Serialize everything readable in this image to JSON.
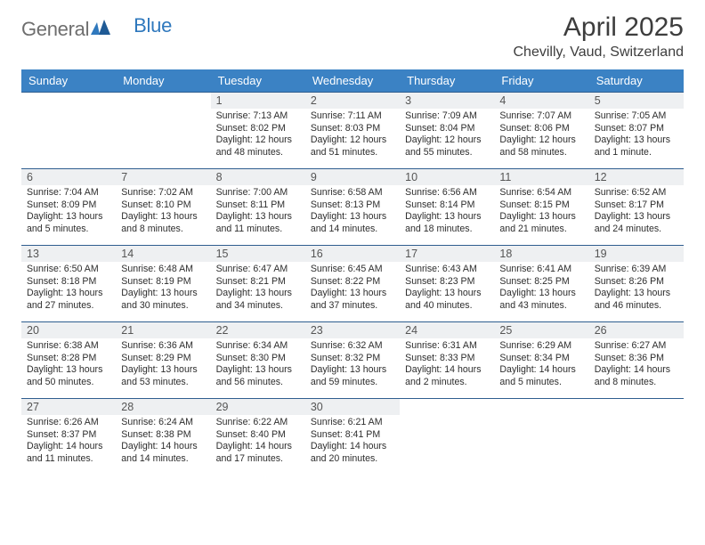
{
  "brand": {
    "part1": "General",
    "part2": "Blue"
  },
  "title": "April 2025",
  "subtitle": "Chevilly, Vaud, Switzerland",
  "colors": {
    "header_bg": "#3b82c4",
    "header_text": "#ffffff",
    "daynum_bg": "#eef0f2",
    "cell_border": "#2f5e8f",
    "logo_gray": "#6e6e6e",
    "logo_blue": "#2f78bd",
    "body_text": "#2d2d2d"
  },
  "weekdays": [
    "Sunday",
    "Monday",
    "Tuesday",
    "Wednesday",
    "Thursday",
    "Friday",
    "Saturday"
  ],
  "weeks": [
    [
      null,
      null,
      {
        "n": "1",
        "sr": "Sunrise: 7:13 AM",
        "ss": "Sunset: 8:02 PM",
        "dl": "Daylight: 12 hours and 48 minutes."
      },
      {
        "n": "2",
        "sr": "Sunrise: 7:11 AM",
        "ss": "Sunset: 8:03 PM",
        "dl": "Daylight: 12 hours and 51 minutes."
      },
      {
        "n": "3",
        "sr": "Sunrise: 7:09 AM",
        "ss": "Sunset: 8:04 PM",
        "dl": "Daylight: 12 hours and 55 minutes."
      },
      {
        "n": "4",
        "sr": "Sunrise: 7:07 AM",
        "ss": "Sunset: 8:06 PM",
        "dl": "Daylight: 12 hours and 58 minutes."
      },
      {
        "n": "5",
        "sr": "Sunrise: 7:05 AM",
        "ss": "Sunset: 8:07 PM",
        "dl": "Daylight: 13 hours and 1 minute."
      }
    ],
    [
      {
        "n": "6",
        "sr": "Sunrise: 7:04 AM",
        "ss": "Sunset: 8:09 PM",
        "dl": "Daylight: 13 hours and 5 minutes."
      },
      {
        "n": "7",
        "sr": "Sunrise: 7:02 AM",
        "ss": "Sunset: 8:10 PM",
        "dl": "Daylight: 13 hours and 8 minutes."
      },
      {
        "n": "8",
        "sr": "Sunrise: 7:00 AM",
        "ss": "Sunset: 8:11 PM",
        "dl": "Daylight: 13 hours and 11 minutes."
      },
      {
        "n": "9",
        "sr": "Sunrise: 6:58 AM",
        "ss": "Sunset: 8:13 PM",
        "dl": "Daylight: 13 hours and 14 minutes."
      },
      {
        "n": "10",
        "sr": "Sunrise: 6:56 AM",
        "ss": "Sunset: 8:14 PM",
        "dl": "Daylight: 13 hours and 18 minutes."
      },
      {
        "n": "11",
        "sr": "Sunrise: 6:54 AM",
        "ss": "Sunset: 8:15 PM",
        "dl": "Daylight: 13 hours and 21 minutes."
      },
      {
        "n": "12",
        "sr": "Sunrise: 6:52 AM",
        "ss": "Sunset: 8:17 PM",
        "dl": "Daylight: 13 hours and 24 minutes."
      }
    ],
    [
      {
        "n": "13",
        "sr": "Sunrise: 6:50 AM",
        "ss": "Sunset: 8:18 PM",
        "dl": "Daylight: 13 hours and 27 minutes."
      },
      {
        "n": "14",
        "sr": "Sunrise: 6:48 AM",
        "ss": "Sunset: 8:19 PM",
        "dl": "Daylight: 13 hours and 30 minutes."
      },
      {
        "n": "15",
        "sr": "Sunrise: 6:47 AM",
        "ss": "Sunset: 8:21 PM",
        "dl": "Daylight: 13 hours and 34 minutes."
      },
      {
        "n": "16",
        "sr": "Sunrise: 6:45 AM",
        "ss": "Sunset: 8:22 PM",
        "dl": "Daylight: 13 hours and 37 minutes."
      },
      {
        "n": "17",
        "sr": "Sunrise: 6:43 AM",
        "ss": "Sunset: 8:23 PM",
        "dl": "Daylight: 13 hours and 40 minutes."
      },
      {
        "n": "18",
        "sr": "Sunrise: 6:41 AM",
        "ss": "Sunset: 8:25 PM",
        "dl": "Daylight: 13 hours and 43 minutes."
      },
      {
        "n": "19",
        "sr": "Sunrise: 6:39 AM",
        "ss": "Sunset: 8:26 PM",
        "dl": "Daylight: 13 hours and 46 minutes."
      }
    ],
    [
      {
        "n": "20",
        "sr": "Sunrise: 6:38 AM",
        "ss": "Sunset: 8:28 PM",
        "dl": "Daylight: 13 hours and 50 minutes."
      },
      {
        "n": "21",
        "sr": "Sunrise: 6:36 AM",
        "ss": "Sunset: 8:29 PM",
        "dl": "Daylight: 13 hours and 53 minutes."
      },
      {
        "n": "22",
        "sr": "Sunrise: 6:34 AM",
        "ss": "Sunset: 8:30 PM",
        "dl": "Daylight: 13 hours and 56 minutes."
      },
      {
        "n": "23",
        "sr": "Sunrise: 6:32 AM",
        "ss": "Sunset: 8:32 PM",
        "dl": "Daylight: 13 hours and 59 minutes."
      },
      {
        "n": "24",
        "sr": "Sunrise: 6:31 AM",
        "ss": "Sunset: 8:33 PM",
        "dl": "Daylight: 14 hours and 2 minutes."
      },
      {
        "n": "25",
        "sr": "Sunrise: 6:29 AM",
        "ss": "Sunset: 8:34 PM",
        "dl": "Daylight: 14 hours and 5 minutes."
      },
      {
        "n": "26",
        "sr": "Sunrise: 6:27 AM",
        "ss": "Sunset: 8:36 PM",
        "dl": "Daylight: 14 hours and 8 minutes."
      }
    ],
    [
      {
        "n": "27",
        "sr": "Sunrise: 6:26 AM",
        "ss": "Sunset: 8:37 PM",
        "dl": "Daylight: 14 hours and 11 minutes."
      },
      {
        "n": "28",
        "sr": "Sunrise: 6:24 AM",
        "ss": "Sunset: 8:38 PM",
        "dl": "Daylight: 14 hours and 14 minutes."
      },
      {
        "n": "29",
        "sr": "Sunrise: 6:22 AM",
        "ss": "Sunset: 8:40 PM",
        "dl": "Daylight: 14 hours and 17 minutes."
      },
      {
        "n": "30",
        "sr": "Sunrise: 6:21 AM",
        "ss": "Sunset: 8:41 PM",
        "dl": "Daylight: 14 hours and 20 minutes."
      },
      null,
      null,
      null
    ]
  ]
}
